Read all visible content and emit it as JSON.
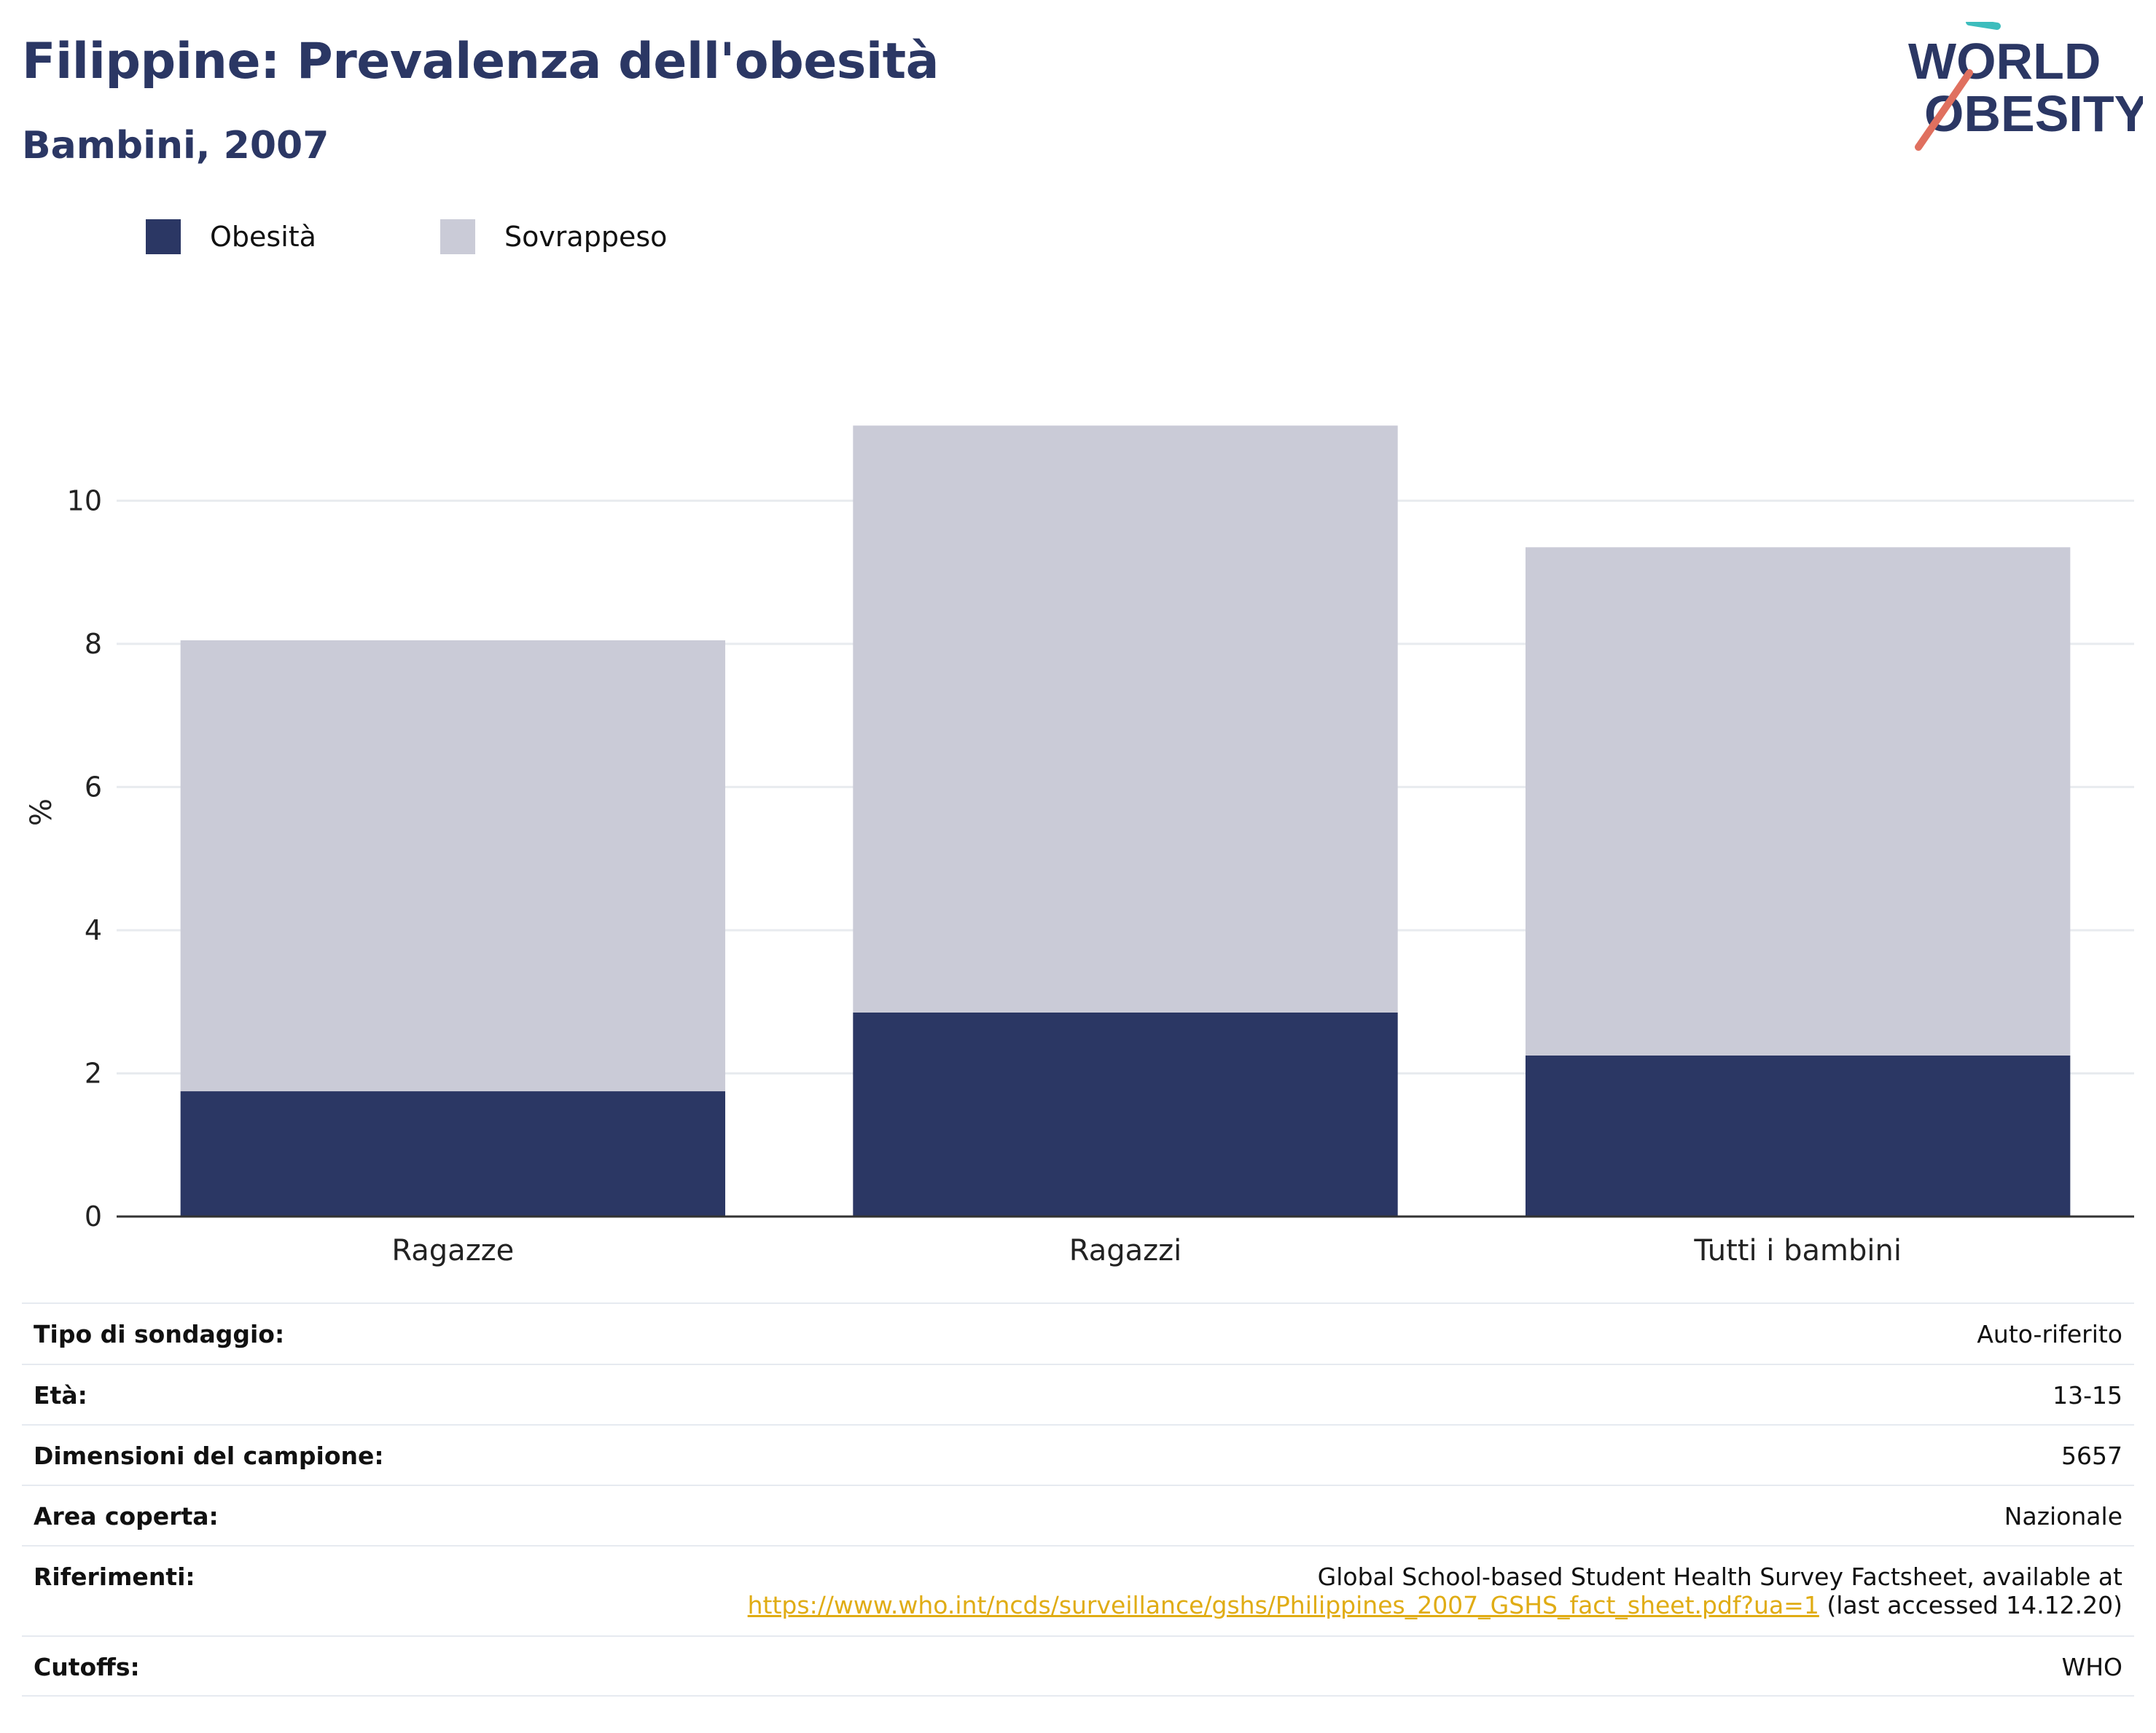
{
  "header": {
    "title": "Filippine: Prevalenza dell'obesità",
    "subtitle": "Bambini, 2007"
  },
  "logo": {
    "line1": "WORLD",
    "line2": "OBESITY"
  },
  "colors": {
    "obesity": "#2b3764",
    "overweight": "#cacbd7",
    "text": "#2b3764",
    "link": "#e0ac14"
  },
  "legend": [
    {
      "label": "Obesità",
      "color": "#2b3764"
    },
    {
      "label": "Sovrappeso",
      "color": "#cacbd7"
    }
  ],
  "chart_data": {
    "type": "bar",
    "stacked": true,
    "categories": [
      "Ragazze",
      "Ragazzi",
      "Tutti i bambini"
    ],
    "series": [
      {
        "name": "Obesità",
        "values": [
          1.75,
          2.85,
          2.25
        ],
        "color": "#2b3764"
      },
      {
        "name": "Sovrappeso",
        "values": [
          6.3,
          8.2,
          7.1
        ],
        "color": "#cacbd7"
      }
    ],
    "ylabel": "%",
    "ylim": [
      0,
      11.5
    ],
    "yticks": [
      0,
      2,
      4,
      6,
      8,
      10
    ],
    "grid": true,
    "legend_position": "top-left"
  },
  "info": [
    {
      "key": "Tipo di sondaggio:",
      "value": "Auto-riferito"
    },
    {
      "key": "Età:",
      "value": "13-15"
    },
    {
      "key": "Dimensioni del campione:",
      "value": "5657"
    },
    {
      "key": "Area coperta:",
      "value": "Nazionale"
    },
    {
      "key": "Riferimenti:",
      "value_line1": "Global School-based Student Health Survey Factsheet, available at",
      "link": "https://www.who.int/ncds/surveillance/gshs/Philippines_2007_GSHS_fact_sheet.pdf?ua=1",
      "value_suffix": " (last accessed 14.12.20)"
    },
    {
      "key": "Cutoffs:",
      "value": "WHO"
    }
  ]
}
